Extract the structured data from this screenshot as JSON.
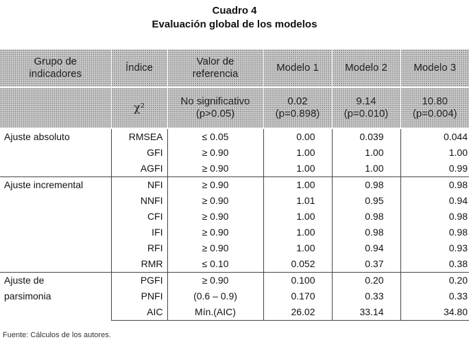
{
  "title": {
    "line1": "Cuadro 4",
    "line2": "Evaluación global de los modelos"
  },
  "header": {
    "group_line1": "Grupo de",
    "group_line2": "indicadores",
    "index": "Índice",
    "ref_line1": "Valor de",
    "ref_line2": "referencia",
    "model1": "Modelo 1",
    "model2": "Modelo 2",
    "model3": "Modelo 3",
    "chi_symbol": "χ²",
    "chi_ref_line1": "No significativo",
    "chi_ref_line2": "(p>0.05)",
    "chi_m1_line1": "0.02",
    "chi_m1_line2": "(p=0.898)",
    "chi_m2_line1": "9.14",
    "chi_m2_line2": "(p=0.010)",
    "chi_m3_line1": "10.80",
    "chi_m3_line2": "(p=0.004)"
  },
  "groups": {
    "absolute": "Ajuste absoluto",
    "incremental": "Ajuste incremental",
    "parsimony_line1": "Ajuste de",
    "parsimony_line2": "parsimonia"
  },
  "rows": [
    {
      "index": "RMSEA",
      "ref": "≤ 0.05",
      "m1": "0.00",
      "m2": "0.039",
      "m3": "0.044"
    },
    {
      "index": "GFI",
      "ref": "≥ 0.90",
      "m1": "1.00",
      "m2": "1.00",
      "m3": "1.00"
    },
    {
      "index": "AGFI",
      "ref": "≥ 0.90",
      "m1": "1.00",
      "m2": "1.00",
      "m3": "0.99"
    },
    {
      "index": "NFI",
      "ref": "≥ 0.90",
      "m1": "1.00",
      "m2": "0.98",
      "m3": "0.98"
    },
    {
      "index": "NNFI",
      "ref": "≥ 0.90",
      "m1": "1.01",
      "m2": "0.95",
      "m3": "0.94"
    },
    {
      "index": "CFI",
      "ref": "≥ 0.90",
      "m1": "1.00",
      "m2": "0.98",
      "m3": "0.98"
    },
    {
      "index": "IFI",
      "ref": "≥ 0.90",
      "m1": "1.00",
      "m2": "0.98",
      "m3": "0.98"
    },
    {
      "index": "RFI",
      "ref": "≥ 0.90",
      "m1": "1.00",
      "m2": "0.94",
      "m3": "0.93"
    },
    {
      "index": "RMR",
      "ref": "≤ 0.10",
      "m1": "0.052",
      "m2": "0.37",
      "m3": "0.38"
    },
    {
      "index": "PGFI",
      "ref": "≥ 0.90",
      "m1": "0.100",
      "m2": "0.20",
      "m3": "0.20"
    },
    {
      "index": "PNFI",
      "ref": "(0.6 – 0.9)",
      "m1": "0.170",
      "m2": "0.33",
      "m3": "0.33"
    },
    {
      "index": "AIC",
      "ref": "Mín.(AIC)",
      "m1": "26.02",
      "m2": "33.14",
      "m3": "34.80"
    }
  ],
  "source": "Fuente: Cálculos de los autores."
}
